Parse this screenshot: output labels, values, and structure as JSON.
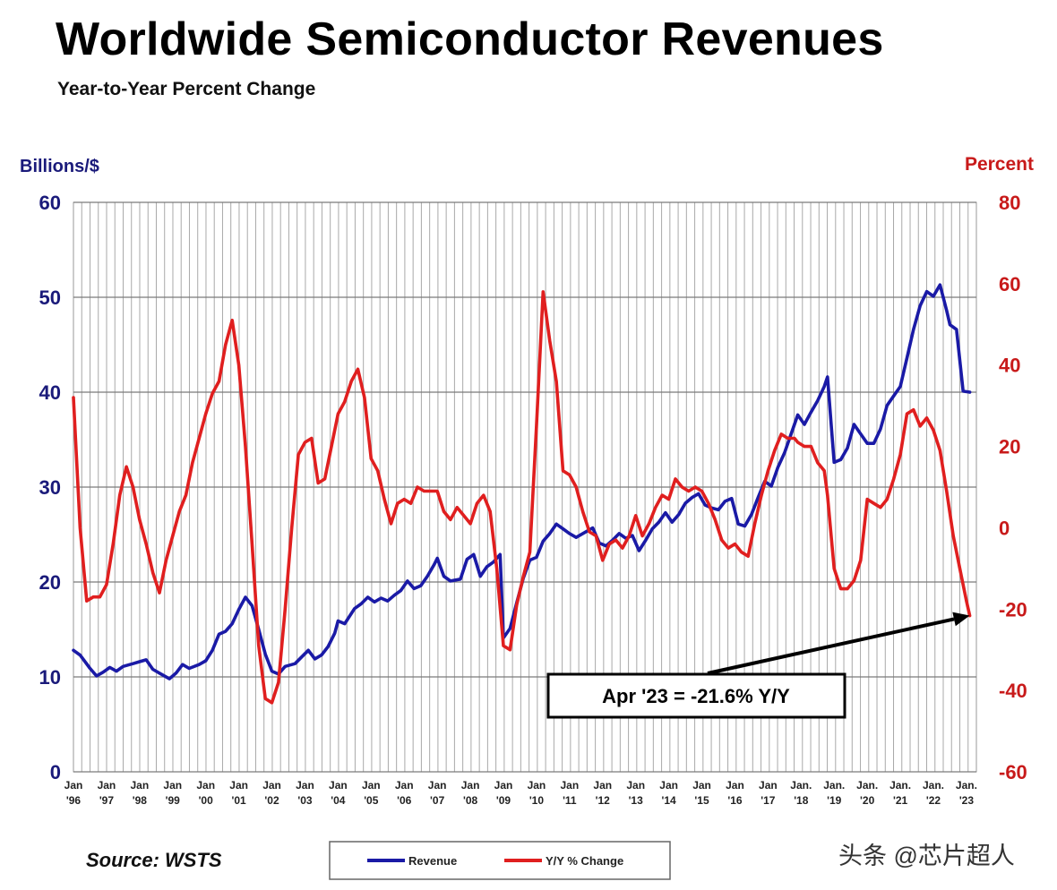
{
  "chart_data": {
    "type": "line",
    "title": "Worldwide Semiconductor Revenues",
    "subtitle": "Year-to-Year Percent Change",
    "left_axis": {
      "label": "Billions/$",
      "min": 0,
      "max": 60,
      "ticks": [
        "0",
        "10",
        "20",
        "30",
        "40",
        "50",
        "60"
      ]
    },
    "right_axis": {
      "label": "Percent",
      "min": -60,
      "max": 80,
      "ticks": [
        "-60",
        "-40",
        "-20",
        "0",
        "20",
        "40",
        "60",
        "80"
      ]
    },
    "x_ticks": [
      {
        "month": "Jan",
        "year": "'96"
      },
      {
        "month": "Jan",
        "year": "'97"
      },
      {
        "month": "Jan",
        "year": "'98"
      },
      {
        "month": "Jan",
        "year": "'99"
      },
      {
        "month": "Jan",
        "year": "'00"
      },
      {
        "month": "Jan",
        "year": "'01"
      },
      {
        "month": "Jan",
        "year": "'02"
      },
      {
        "month": "Jan",
        "year": "'03"
      },
      {
        "month": "Jan",
        "year": "'04"
      },
      {
        "month": "Jan",
        "year": "'05"
      },
      {
        "month": "Jan",
        "year": "'06"
      },
      {
        "month": "Jan",
        "year": "'07"
      },
      {
        "month": "Jan",
        "year": "'08"
      },
      {
        "month": "Jan",
        "year": "'09"
      },
      {
        "month": "Jan",
        "year": "'10"
      },
      {
        "month": "Jan",
        "year": "'11"
      },
      {
        "month": "Jan",
        "year": "'12"
      },
      {
        "month": "Jan",
        "year": "'13"
      },
      {
        "month": "Jan",
        "year": "'14"
      },
      {
        "month": "Jan",
        "year": "'15"
      },
      {
        "month": "Jan",
        "year": "'16"
      },
      {
        "month": "Jan",
        "year": "'17"
      },
      {
        "month": "Jan.",
        "year": "'18"
      },
      {
        "month": "Jan.",
        "year": "'19"
      },
      {
        "month": "Jan.",
        "year": "'20"
      },
      {
        "month": "Jan.",
        "year": "'21"
      },
      {
        "month": "Jan.",
        "year": "'22"
      },
      {
        "month": "Jan.",
        "year": "'23"
      }
    ],
    "x_range": [
      1996.0,
      2023.3
    ],
    "series": [
      {
        "name": "Revenue",
        "axis": "left",
        "color": "#1a1aa6",
        "points": [
          [
            1996.0,
            12.8
          ],
          [
            1996.2,
            12.3
          ],
          [
            1996.5,
            10.9
          ],
          [
            1996.7,
            10.1
          ],
          [
            1996.9,
            10.5
          ],
          [
            1997.1,
            11.0
          ],
          [
            1997.3,
            10.6
          ],
          [
            1997.5,
            11.1
          ],
          [
            1997.8,
            11.4
          ],
          [
            1998.0,
            11.6
          ],
          [
            1998.2,
            11.8
          ],
          [
            1998.4,
            10.8
          ],
          [
            1998.6,
            10.4
          ],
          [
            1998.9,
            9.8
          ],
          [
            1999.1,
            10.4
          ],
          [
            1999.3,
            11.3
          ],
          [
            1999.5,
            10.9
          ],
          [
            1999.8,
            11.3
          ],
          [
            2000.0,
            11.7
          ],
          [
            2000.2,
            12.8
          ],
          [
            2000.4,
            14.5
          ],
          [
            2000.6,
            14.8
          ],
          [
            2000.8,
            15.6
          ],
          [
            2001.0,
            17.1
          ],
          [
            2001.2,
            18.4
          ],
          [
            2001.4,
            17.5
          ],
          [
            2001.6,
            15.0
          ],
          [
            2001.8,
            12.4
          ],
          [
            2002.0,
            10.6
          ],
          [
            2002.2,
            10.3
          ],
          [
            2002.4,
            11.1
          ],
          [
            2002.7,
            11.4
          ],
          [
            2002.9,
            12.1
          ],
          [
            2003.1,
            12.8
          ],
          [
            2003.3,
            11.9
          ],
          [
            2003.5,
            12.3
          ],
          [
            2003.7,
            13.2
          ],
          [
            2003.9,
            14.6
          ],
          [
            2004.0,
            15.9
          ],
          [
            2004.2,
            15.6
          ],
          [
            2004.5,
            17.2
          ],
          [
            2004.7,
            17.7
          ],
          [
            2004.9,
            18.4
          ],
          [
            2005.1,
            17.9
          ],
          [
            2005.3,
            18.3
          ],
          [
            2005.5,
            18.0
          ],
          [
            2005.7,
            18.6
          ],
          [
            2005.9,
            19.1
          ],
          [
            2006.1,
            20.1
          ],
          [
            2006.3,
            19.3
          ],
          [
            2006.5,
            19.6
          ],
          [
            2006.7,
            20.6
          ],
          [
            2006.9,
            21.8
          ],
          [
            2007.0,
            22.5
          ],
          [
            2007.2,
            20.6
          ],
          [
            2007.4,
            20.1
          ],
          [
            2007.7,
            20.3
          ],
          [
            2007.9,
            22.4
          ],
          [
            2008.1,
            22.9
          ],
          [
            2008.3,
            20.6
          ],
          [
            2008.5,
            21.6
          ],
          [
            2008.7,
            22.1
          ],
          [
            2008.9,
            22.9
          ],
          [
            2009.0,
            14.1
          ],
          [
            2009.2,
            15.1
          ],
          [
            2009.4,
            17.8
          ],
          [
            2009.6,
            20.4
          ],
          [
            2009.8,
            22.3
          ],
          [
            2010.0,
            22.6
          ],
          [
            2010.2,
            24.3
          ],
          [
            2010.4,
            25.1
          ],
          [
            2010.6,
            26.1
          ],
          [
            2010.8,
            25.6
          ],
          [
            2011.0,
            25.1
          ],
          [
            2011.2,
            24.7
          ],
          [
            2011.5,
            25.3
          ],
          [
            2011.7,
            25.7
          ],
          [
            2011.9,
            24.1
          ],
          [
            2012.1,
            23.8
          ],
          [
            2012.3,
            24.4
          ],
          [
            2012.5,
            25.1
          ],
          [
            2012.7,
            24.6
          ],
          [
            2012.9,
            24.9
          ],
          [
            2013.1,
            23.3
          ],
          [
            2013.3,
            24.4
          ],
          [
            2013.5,
            25.6
          ],
          [
            2013.7,
            26.3
          ],
          [
            2013.9,
            27.3
          ],
          [
            2014.1,
            26.3
          ],
          [
            2014.3,
            27.1
          ],
          [
            2014.5,
            28.3
          ],
          [
            2014.7,
            28.9
          ],
          [
            2014.9,
            29.3
          ],
          [
            2015.1,
            28.1
          ],
          [
            2015.3,
            27.8
          ],
          [
            2015.5,
            27.6
          ],
          [
            2015.7,
            28.5
          ],
          [
            2015.9,
            28.8
          ],
          [
            2016.1,
            26.1
          ],
          [
            2016.3,
            25.9
          ],
          [
            2016.5,
            27.1
          ],
          [
            2016.7,
            28.9
          ],
          [
            2016.9,
            30.6
          ],
          [
            2017.1,
            30.1
          ],
          [
            2017.3,
            32.1
          ],
          [
            2017.5,
            33.6
          ],
          [
            2017.7,
            35.6
          ],
          [
            2017.9,
            37.6
          ],
          [
            2018.1,
            36.6
          ],
          [
            2018.3,
            37.9
          ],
          [
            2018.5,
            39.1
          ],
          [
            2018.7,
            40.6
          ],
          [
            2018.8,
            41.6
          ],
          [
            2019.0,
            32.6
          ],
          [
            2019.2,
            32.9
          ],
          [
            2019.4,
            34.1
          ],
          [
            2019.6,
            36.6
          ],
          [
            2019.8,
            35.6
          ],
          [
            2020.0,
            34.6
          ],
          [
            2020.2,
            34.6
          ],
          [
            2020.4,
            36.1
          ],
          [
            2020.6,
            38.6
          ],
          [
            2020.8,
            39.6
          ],
          [
            2021.0,
            40.6
          ],
          [
            2021.2,
            43.6
          ],
          [
            2021.4,
            46.6
          ],
          [
            2021.6,
            49.1
          ],
          [
            2021.8,
            50.6
          ],
          [
            2022.0,
            50.1
          ],
          [
            2022.2,
            51.3
          ],
          [
            2022.4,
            48.6
          ],
          [
            2022.5,
            47.1
          ],
          [
            2022.7,
            46.6
          ],
          [
            2022.9,
            40.1
          ],
          [
            2023.1,
            40.0
          ]
        ]
      },
      {
        "name": "Y/Y % Change",
        "axis": "right",
        "color": "#e01f1f",
        "points": [
          [
            1996.0,
            32
          ],
          [
            1996.2,
            0
          ],
          [
            1996.4,
            -18
          ],
          [
            1996.6,
            -17
          ],
          [
            1996.8,
            -17
          ],
          [
            1997.0,
            -14
          ],
          [
            1997.2,
            -4
          ],
          [
            1997.4,
            8
          ],
          [
            1997.6,
            15
          ],
          [
            1997.8,
            10
          ],
          [
            1998.0,
            2
          ],
          [
            1998.2,
            -4
          ],
          [
            1998.4,
            -11
          ],
          [
            1998.6,
            -16
          ],
          [
            1998.8,
            -8
          ],
          [
            1999.0,
            -2
          ],
          [
            1999.2,
            4
          ],
          [
            1999.4,
            8
          ],
          [
            1999.6,
            16
          ],
          [
            1999.8,
            22
          ],
          [
            2000.0,
            28
          ],
          [
            2000.2,
            33
          ],
          [
            2000.4,
            36
          ],
          [
            2000.6,
            45
          ],
          [
            2000.8,
            51
          ],
          [
            2001.0,
            40
          ],
          [
            2001.2,
            20
          ],
          [
            2001.4,
            -4
          ],
          [
            2001.6,
            -29
          ],
          [
            2001.8,
            -42
          ],
          [
            2002.0,
            -43
          ],
          [
            2002.2,
            -38
          ],
          [
            2002.4,
            -20
          ],
          [
            2002.6,
            0
          ],
          [
            2002.8,
            18
          ],
          [
            2003.0,
            21
          ],
          [
            2003.2,
            22
          ],
          [
            2003.4,
            11
          ],
          [
            2003.6,
            12
          ],
          [
            2003.8,
            20
          ],
          [
            2004.0,
            28
          ],
          [
            2004.2,
            31
          ],
          [
            2004.4,
            36
          ],
          [
            2004.6,
            39
          ],
          [
            2004.8,
            32
          ],
          [
            2005.0,
            17
          ],
          [
            2005.2,
            14
          ],
          [
            2005.4,
            7
          ],
          [
            2005.6,
            1
          ],
          [
            2005.8,
            6
          ],
          [
            2006.0,
            7
          ],
          [
            2006.2,
            6
          ],
          [
            2006.4,
            10
          ],
          [
            2006.6,
            9
          ],
          [
            2006.8,
            9
          ],
          [
            2007.0,
            9
          ],
          [
            2007.2,
            4
          ],
          [
            2007.4,
            2
          ],
          [
            2007.6,
            5
          ],
          [
            2007.8,
            3
          ],
          [
            2008.0,
            1
          ],
          [
            2008.2,
            6
          ],
          [
            2008.4,
            8
          ],
          [
            2008.6,
            4
          ],
          [
            2008.8,
            -10
          ],
          [
            2009.0,
            -29
          ],
          [
            2009.2,
            -30
          ],
          [
            2009.4,
            -19
          ],
          [
            2009.6,
            -12
          ],
          [
            2009.8,
            -6
          ],
          [
            2010.0,
            25
          ],
          [
            2010.2,
            58
          ],
          [
            2010.4,
            46
          ],
          [
            2010.6,
            36
          ],
          [
            2010.8,
            14
          ],
          [
            2011.0,
            13
          ],
          [
            2011.2,
            10
          ],
          [
            2011.4,
            4
          ],
          [
            2011.6,
            -1
          ],
          [
            2011.8,
            -2
          ],
          [
            2012.0,
            -8
          ],
          [
            2012.2,
            -4
          ],
          [
            2012.4,
            -3
          ],
          [
            2012.6,
            -5
          ],
          [
            2012.8,
            -2
          ],
          [
            2013.0,
            3
          ],
          [
            2013.2,
            -2
          ],
          [
            2013.4,
            1
          ],
          [
            2013.6,
            5
          ],
          [
            2013.8,
            8
          ],
          [
            2014.0,
            7
          ],
          [
            2014.2,
            12
          ],
          [
            2014.4,
            10
          ],
          [
            2014.6,
            9
          ],
          [
            2014.8,
            10
          ],
          [
            2015.0,
            9
          ],
          [
            2015.2,
            6
          ],
          [
            2015.4,
            2
          ],
          [
            2015.6,
            -3
          ],
          [
            2015.8,
            -5
          ],
          [
            2016.0,
            -4
          ],
          [
            2016.2,
            -6
          ],
          [
            2016.4,
            -7
          ],
          [
            2016.6,
            1
          ],
          [
            2016.8,
            8
          ],
          [
            2017.0,
            14
          ],
          [
            2017.2,
            19
          ],
          [
            2017.4,
            23
          ],
          [
            2017.6,
            22
          ],
          [
            2017.8,
            22
          ],
          [
            2017.9,
            21
          ],
          [
            2018.1,
            20
          ],
          [
            2018.3,
            20
          ],
          [
            2018.5,
            16
          ],
          [
            2018.7,
            14
          ],
          [
            2018.8,
            8
          ],
          [
            2019.0,
            -10
          ],
          [
            2019.2,
            -15
          ],
          [
            2019.4,
            -15
          ],
          [
            2019.6,
            -13
          ],
          [
            2019.8,
            -8
          ],
          [
            2020.0,
            7
          ],
          [
            2020.2,
            6
          ],
          [
            2020.4,
            5
          ],
          [
            2020.6,
            7
          ],
          [
            2020.8,
            12
          ],
          [
            2021.0,
            18
          ],
          [
            2021.2,
            28
          ],
          [
            2021.4,
            29
          ],
          [
            2021.6,
            25
          ],
          [
            2021.8,
            27
          ],
          [
            2022.0,
            24
          ],
          [
            2022.2,
            19
          ],
          [
            2022.4,
            9
          ],
          [
            2022.6,
            -2
          ],
          [
            2022.8,
            -10
          ],
          [
            2023.0,
            -18
          ],
          [
            2023.1,
            -21.6
          ]
        ]
      }
    ],
    "annotation": {
      "text": "Apr '23 = -21.6% Y/Y",
      "x": 2023.1,
      "y": -21.6,
      "axis": "right"
    },
    "legend": [
      {
        "label": "Revenue",
        "color": "#1a1aa6"
      },
      {
        "label": "Y/Y % Change",
        "color": "#e01f1f"
      }
    ],
    "grid": true
  },
  "source": "Source: WSTS",
  "watermark": "头条 @芯片超人"
}
